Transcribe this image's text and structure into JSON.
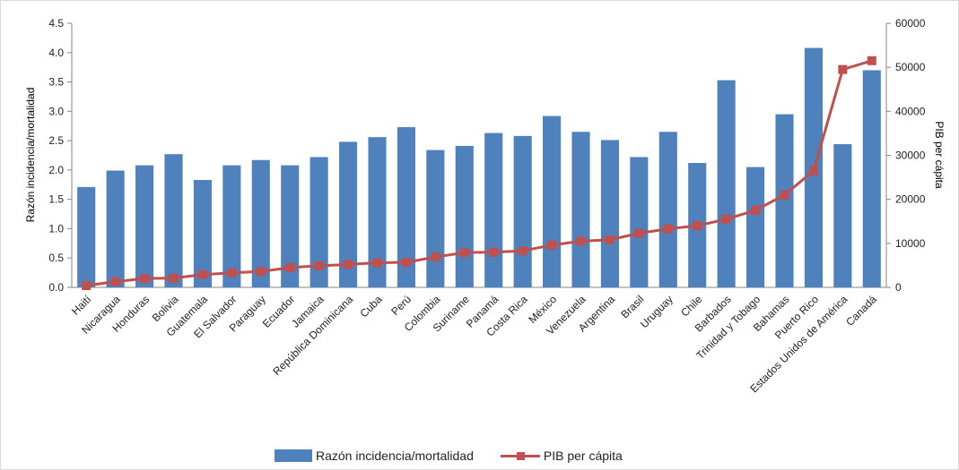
{
  "chart_data": {
    "type": "bar",
    "categories": [
      "Haití",
      "Nicaragua",
      "Honduras",
      "Bolivia",
      "Guatemala",
      "El Salvador",
      "Paraguay",
      "Ecuador",
      "Jamaica",
      "República Dominicana",
      "Cuba",
      "Perú",
      "Colombia",
      "Suriname",
      "Panamá",
      "Costa Rica",
      "México",
      "Venezuela",
      "Argentina",
      "Brasil",
      "Uruguay",
      "Chile",
      "Barbados",
      "Trinidad y Tobago",
      "Bahamas",
      "Puerto Rico",
      "Estados Unidos de América",
      "Canadá"
    ],
    "series": [
      {
        "name": "Razón incidencia/mortalidad",
        "type": "bar",
        "axis": "left",
        "color": "#4f81bd",
        "values": [
          1.71,
          1.99,
          2.08,
          2.27,
          1.83,
          2.08,
          2.17,
          2.08,
          2.22,
          2.48,
          2.56,
          2.73,
          2.34,
          2.41,
          2.63,
          2.58,
          2.92,
          2.65,
          2.51,
          2.22,
          2.65,
          2.12,
          3.53,
          2.05,
          2.95,
          4.08,
          2.44,
          3.7
        ]
      },
      {
        "name": "PIB per cápita",
        "type": "line",
        "axis": "right",
        "color": "#c0504d",
        "values": [
          400,
          1300,
          2000,
          2100,
          2900,
          3300,
          3600,
          4500,
          4900,
          5200,
          5600,
          5700,
          6900,
          7900,
          8000,
          8300,
          9600,
          10500,
          10800,
          12300,
          13300,
          14000,
          15500,
          17500,
          21000,
          26500,
          49500,
          51500
        ]
      }
    ],
    "ylim_left": [
      0,
      4.5
    ],
    "yticks_left": [
      "0.0",
      "0.5",
      "1.0",
      "1.5",
      "2.0",
      "2.5",
      "3.0",
      "3.5",
      "4.0",
      "4.5"
    ],
    "ylim_right": [
      0,
      60000
    ],
    "yticks_right": [
      "0",
      "10000",
      "20000",
      "30000",
      "40000",
      "50000",
      "60000"
    ],
    "ylabel_left": "Razón incidencia/mortalidad",
    "ylabel_right": "PIB per cápita",
    "legend_position": "bottom",
    "grid": false
  }
}
